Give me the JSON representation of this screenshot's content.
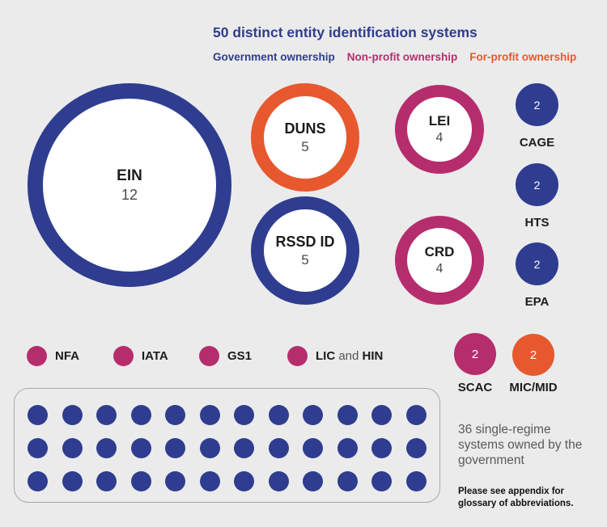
{
  "title": "50 distinct entity identification systems",
  "legend": {
    "government": "Government ownership",
    "non_profit": "Non-profit ownership",
    "for_profit": "For-profit ownership"
  },
  "colors": {
    "government": "#2e3d8f",
    "non_profit": "#b62d6e",
    "for_profit": "#e7582e",
    "background": "#ebebeb",
    "number_text": "#4a4a4a",
    "caption_text": "#595959"
  },
  "bubbles": {
    "ein": {
      "label": "EIN",
      "value": "12"
    },
    "duns": {
      "label": "DUNS",
      "value": "5"
    },
    "rssd": {
      "label": "RSSD ID",
      "value": "5"
    },
    "lei": {
      "label": "LEI",
      "value": "4"
    },
    "crd": {
      "label": "CRD",
      "value": "4"
    },
    "cage": {
      "label": "CAGE",
      "value": "2"
    },
    "hts": {
      "label": "HTS",
      "value": "2"
    },
    "epa": {
      "label": "EPA",
      "value": "2"
    },
    "scac": {
      "label": "SCAC",
      "value": "2"
    },
    "micmid": {
      "label": "MIC/MID",
      "value": "2"
    }
  },
  "small_items": {
    "nfa": "NFA",
    "iata": "IATA",
    "gs1": "GS1",
    "lic_hin": {
      "bold1": "LIC",
      "connector": " and ",
      "bold2": "HIN"
    }
  },
  "dot_grid": {
    "count": 36,
    "columns": 12,
    "rows": 3,
    "caption": "36 single-regime systems owned by the government"
  },
  "footnote": "Please see appendix for glossary of abbreviations.",
  "chart_data": {
    "type": "bubble",
    "title": "50 distinct entity identification systems",
    "legend_entries": [
      "Government ownership",
      "Non-profit ownership",
      "For-profit ownership"
    ],
    "legend_position": "top",
    "series": [
      {
        "name": "EIN",
        "displayed_value": 12,
        "ownership": "government"
      },
      {
        "name": "DUNS",
        "displayed_value": 5,
        "ownership": "for-profit"
      },
      {
        "name": "RSSD ID",
        "displayed_value": 5,
        "ownership": "government"
      },
      {
        "name": "LEI",
        "displayed_value": 4,
        "ownership": "non-profit"
      },
      {
        "name": "CRD",
        "displayed_value": 4,
        "ownership": "non-profit"
      },
      {
        "name": "CAGE",
        "displayed_value": 2,
        "ownership": "government"
      },
      {
        "name": "HTS",
        "displayed_value": 2,
        "ownership": "government"
      },
      {
        "name": "EPA",
        "displayed_value": 2,
        "ownership": "government"
      },
      {
        "name": "SCAC",
        "displayed_value": 2,
        "ownership": "non-profit"
      },
      {
        "name": "MIC/MID",
        "displayed_value": 2,
        "ownership": "for-profit"
      },
      {
        "name": "NFA",
        "displayed_value": null,
        "ownership": "non-profit"
      },
      {
        "name": "IATA",
        "displayed_value": null,
        "ownership": "non-profit"
      },
      {
        "name": "GS1",
        "displayed_value": null,
        "ownership": "non-profit"
      },
      {
        "name": "LIC and HIN",
        "displayed_value": null,
        "ownership": "non-profit"
      },
      {
        "name": "36 single-regime systems owned by the government",
        "displayed_value": 36,
        "ownership": "government"
      }
    ],
    "annotations": [
      "Please see appendix for glossary of abbreviations."
    ]
  }
}
